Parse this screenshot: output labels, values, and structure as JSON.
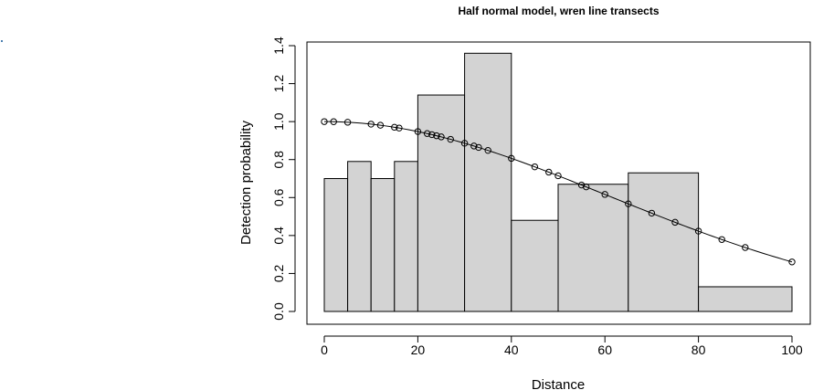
{
  "chart_data": {
    "type": "bar",
    "title": "Half normal model, wren line transects",
    "xlabel": "Distance",
    "ylabel": "Detection probability",
    "xlim": [
      0,
      100
    ],
    "ylim": [
      0,
      1.4
    ],
    "x_ticks": [
      "0",
      "20",
      "40",
      "60",
      "80",
      "100"
    ],
    "y_ticks": [
      "0.0",
      "0.2",
      "0.4",
      "0.6",
      "0.8",
      "1.0",
      "1.2",
      "1.4"
    ],
    "grid": false,
    "histogram": {
      "bins": [
        [
          0,
          5
        ],
        [
          5,
          10
        ],
        [
          10,
          15
        ],
        [
          15,
          20
        ],
        [
          20,
          30
        ],
        [
          30,
          40
        ],
        [
          40,
          50
        ],
        [
          50,
          65
        ],
        [
          65,
          80
        ],
        [
          80,
          100
        ]
      ],
      "values": [
        0.7,
        0.79,
        0.7,
        0.79,
        1.14,
        1.36,
        0.48,
        0.67,
        0.73,
        0.13
      ],
      "fill": "#d3d3d3"
    },
    "fitted_curve": {
      "model": "half-normal",
      "sigma": 61.0
    },
    "points_x": [
      0,
      2,
      5,
      10,
      12,
      15,
      16,
      20,
      22,
      23,
      24,
      25,
      27,
      30,
      32,
      33,
      35,
      40,
      45,
      48,
      50,
      55,
      56,
      60,
      65,
      70,
      75,
      80,
      85,
      90,
      100
    ]
  }
}
